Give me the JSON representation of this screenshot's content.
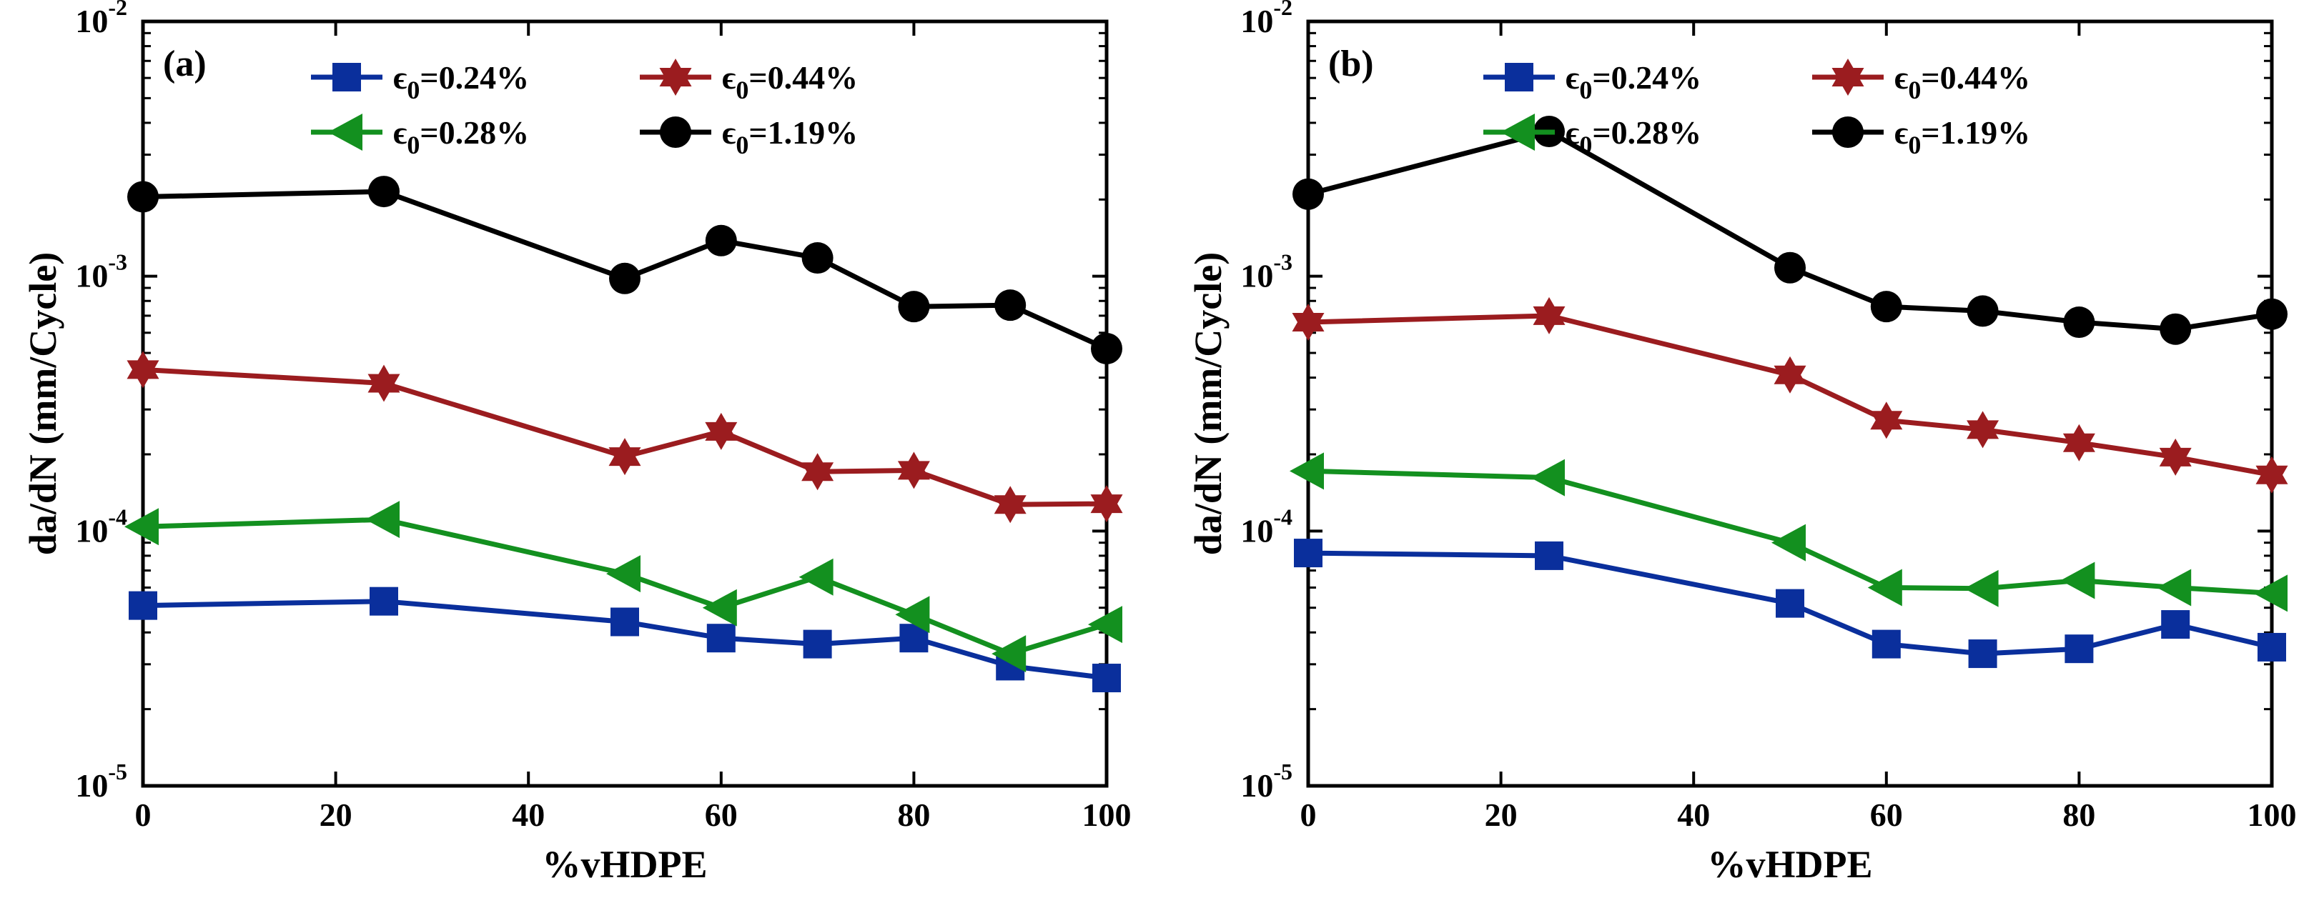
{
  "chart_data": [
    {
      "type": "line",
      "panel_label": "(a)",
      "title": "",
      "xlabel": "%vHDPE",
      "ylabel": "da/dN (mm/Cycle)",
      "xlim": [
        0,
        100
      ],
      "ylim": [
        1e-05,
        0.01
      ],
      "yscale": "log",
      "grid": false,
      "legend_position": "top-center",
      "x_ticks": [
        {
          "value": 0,
          "label": "0"
        },
        {
          "value": 20,
          "label": "20"
        },
        {
          "value": 40,
          "label": "40"
        },
        {
          "value": 60,
          "label": "60"
        },
        {
          "value": 80,
          "label": "80"
        },
        {
          "value": 100,
          "label": "100"
        }
      ],
      "y_ticks": [
        {
          "value": 1e-05,
          "base": "10",
          "exp": "-5"
        },
        {
          "value": 0.0001,
          "base": "10",
          "exp": "-4"
        },
        {
          "value": 0.001,
          "base": "10",
          "exp": "-3"
        },
        {
          "value": 0.01,
          "base": "10",
          "exp": "-2"
        }
      ],
      "series": [
        {
          "name": "ε0=0.24%",
          "sym": "ϵ",
          "sub": "0",
          "val": "=0.24%",
          "color": "#0a2f9c",
          "marker": "square",
          "x": [
            0,
            25,
            50,
            60,
            70,
            80,
            90,
            100
          ],
          "values": [
            5.1e-05,
            5.3e-05,
            4.4e-05,
            3.8e-05,
            3.6e-05,
            3.8e-05,
            2.95e-05,
            2.65e-05
          ]
        },
        {
          "name": "ε0=0.44%",
          "sym": "ϵ",
          "sub": "0",
          "val": "=0.44%",
          "color": "#9b1c1f",
          "marker": "hexagram",
          "x": [
            0,
            25,
            50,
            60,
            70,
            80,
            90,
            100
          ],
          "values": [
            0.00043,
            0.00038,
            0.000196,
            0.000246,
            0.000171,
            0.000173,
            0.000127,
            0.000128
          ]
        },
        {
          "name": "ε0=0.28%",
          "sym": "ϵ",
          "sub": "0",
          "val": "=0.28%",
          "color": "#13901f",
          "marker": "triangle-left",
          "x": [
            0,
            25,
            50,
            60,
            70,
            80,
            90,
            100
          ],
          "values": [
            0.000104,
            0.000111,
            6.8e-05,
            5e-05,
            6.6e-05,
            4.7e-05,
            3.3e-05,
            4.3e-05
          ]
        },
        {
          "name": "ε0=1.19%",
          "sym": "ϵ",
          "sub": "0",
          "val": "=1.19%",
          "color": "#000000",
          "marker": "circle",
          "x": [
            0,
            25,
            50,
            60,
            70,
            80,
            90,
            100
          ],
          "values": [
            0.00205,
            0.00215,
            0.00098,
            0.00138,
            0.00118,
            0.00076,
            0.00077,
            0.00052
          ]
        }
      ]
    },
    {
      "type": "line",
      "panel_label": "(b)",
      "title": "",
      "xlabel": "%vHDPE",
      "ylabel": "da/dN (mm/Cycle)",
      "xlim": [
        0,
        100
      ],
      "ylim": [
        1e-05,
        0.01
      ],
      "yscale": "log",
      "grid": false,
      "legend_position": "top-center",
      "x_ticks": [
        {
          "value": 0,
          "label": "0"
        },
        {
          "value": 20,
          "label": "20"
        },
        {
          "value": 40,
          "label": "40"
        },
        {
          "value": 60,
          "label": "60"
        },
        {
          "value": 80,
          "label": "80"
        },
        {
          "value": 100,
          "label": "100"
        }
      ],
      "y_ticks": [
        {
          "value": 1e-05,
          "base": "10",
          "exp": "-5"
        },
        {
          "value": 0.0001,
          "base": "10",
          "exp": "-4"
        },
        {
          "value": 0.001,
          "base": "10",
          "exp": "-3"
        },
        {
          "value": 0.01,
          "base": "10",
          "exp": "-2"
        }
      ],
      "series": [
        {
          "name": "ε0=0.24%",
          "sym": "ϵ",
          "sub": "0",
          "val": "=0.24%",
          "color": "#0a2f9c",
          "marker": "square",
          "x": [
            0,
            25,
            50,
            60,
            70,
            80,
            90,
            100
          ],
          "values": [
            8.2e-05,
            8e-05,
            5.2e-05,
            3.6e-05,
            3.3e-05,
            3.45e-05,
            4.3e-05,
            3.5e-05
          ]
        },
        {
          "name": "ε0=0.44%",
          "sym": "ϵ",
          "sub": "0",
          "val": "=0.44%",
          "color": "#9b1c1f",
          "marker": "hexagram",
          "x": [
            0,
            25,
            50,
            60,
            70,
            80,
            90,
            100
          ],
          "values": [
            0.00066,
            0.0007,
            0.00041,
            0.000272,
            0.00025,
            0.000222,
            0.000195,
            0.000166
          ]
        },
        {
          "name": "ε0=0.28%",
          "sym": "ϵ",
          "sub": "0",
          "val": "=0.28%",
          "color": "#13901f",
          "marker": "triangle-left",
          "x": [
            0,
            25,
            50,
            60,
            70,
            80,
            90,
            100
          ],
          "values": [
            0.000172,
            0.000162,
            9e-05,
            6e-05,
            5.95e-05,
            6.4e-05,
            6e-05,
            5.7e-05
          ]
        },
        {
          "name": "ε0=1.19%",
          "sym": "ϵ",
          "sub": "0",
          "val": "=1.19%",
          "color": "#000000",
          "marker": "circle",
          "x": [
            0,
            25,
            50,
            60,
            70,
            80,
            90,
            100
          ],
          "values": [
            0.0021,
            0.0037,
            0.00108,
            0.00076,
            0.00073,
            0.00066,
            0.00062,
            0.00071
          ]
        }
      ]
    }
  ]
}
